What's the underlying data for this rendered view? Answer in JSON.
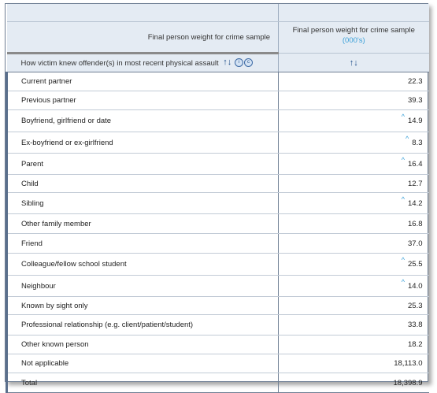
{
  "measure": {
    "corner_label": "Final person weight for crime sample",
    "title": "Final person weight for crime sample",
    "units": "(000's)"
  },
  "row_header": {
    "label": "How victim knew offender(s) in most recent physical assault"
  },
  "icons": {
    "sort_up": "sort-ascending-icon",
    "sort_down": "sort-descending-icon",
    "info": "info-icon",
    "copyright": "copyright-icon"
  },
  "flag_symbol": "^",
  "rows": [
    {
      "label": "Current partner",
      "value": "22.3",
      "flag": ""
    },
    {
      "label": "Previous partner",
      "value": "39.3",
      "flag": ""
    },
    {
      "label": "Boyfriend, girlfriend or date",
      "value": "14.9",
      "flag": "^"
    },
    {
      "label": "Ex-boyfriend or ex-girlfriend",
      "value": "8.3",
      "flag": "^"
    },
    {
      "label": "Parent",
      "value": "16.4",
      "flag": "^"
    },
    {
      "label": "Child",
      "value": "12.7",
      "flag": ""
    },
    {
      "label": "Sibling",
      "value": "14.2",
      "flag": "^"
    },
    {
      "label": "Other family member",
      "value": "16.8",
      "flag": ""
    },
    {
      "label": "Friend",
      "value": "37.0",
      "flag": ""
    },
    {
      "label": "Colleague/fellow school student",
      "value": "25.5",
      "flag": "^"
    },
    {
      "label": "Neighbour",
      "value": "14.0",
      "flag": "^"
    },
    {
      "label": "Known by sight only",
      "value": "25.3",
      "flag": ""
    },
    {
      "label": "Professional relationship (e.g. client/patient/student)",
      "value": "33.8",
      "flag": ""
    },
    {
      "label": "Other known person",
      "value": "18.2",
      "flag": ""
    },
    {
      "label": "Not applicable",
      "value": "18,113.0",
      "flag": ""
    },
    {
      "label": "Total",
      "value": "18,398.9",
      "flag": ""
    }
  ],
  "colors": {
    "header_bg": "#e4ebf3",
    "border": "#6f7f94",
    "accent_blue": "#3aa0d8",
    "icon_blue": "#1f4e8a"
  }
}
